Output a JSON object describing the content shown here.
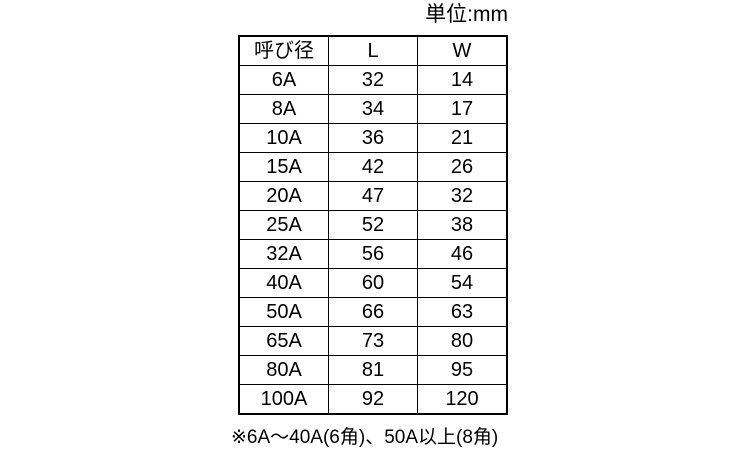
{
  "unit_label": "単位:mm",
  "table": {
    "headers": [
      "呼び径",
      "L",
      "W"
    ],
    "rows": [
      [
        "6A",
        "32",
        "14"
      ],
      [
        "8A",
        "34",
        "17"
      ],
      [
        "10A",
        "36",
        "21"
      ],
      [
        "15A",
        "42",
        "26"
      ],
      [
        "20A",
        "47",
        "32"
      ],
      [
        "25A",
        "52",
        "38"
      ],
      [
        "32A",
        "56",
        "46"
      ],
      [
        "40A",
        "60",
        "54"
      ],
      [
        "50A",
        "66",
        "63"
      ],
      [
        "65A",
        "73",
        "80"
      ],
      [
        "80A",
        "81",
        "95"
      ],
      [
        "100A",
        "92",
        "120"
      ]
    ]
  },
  "footnote": "※6A～40A(6角)、50A以上(8角)",
  "colors": {
    "background": "#ffffff",
    "border": "#000000",
    "text": "#000000"
  }
}
